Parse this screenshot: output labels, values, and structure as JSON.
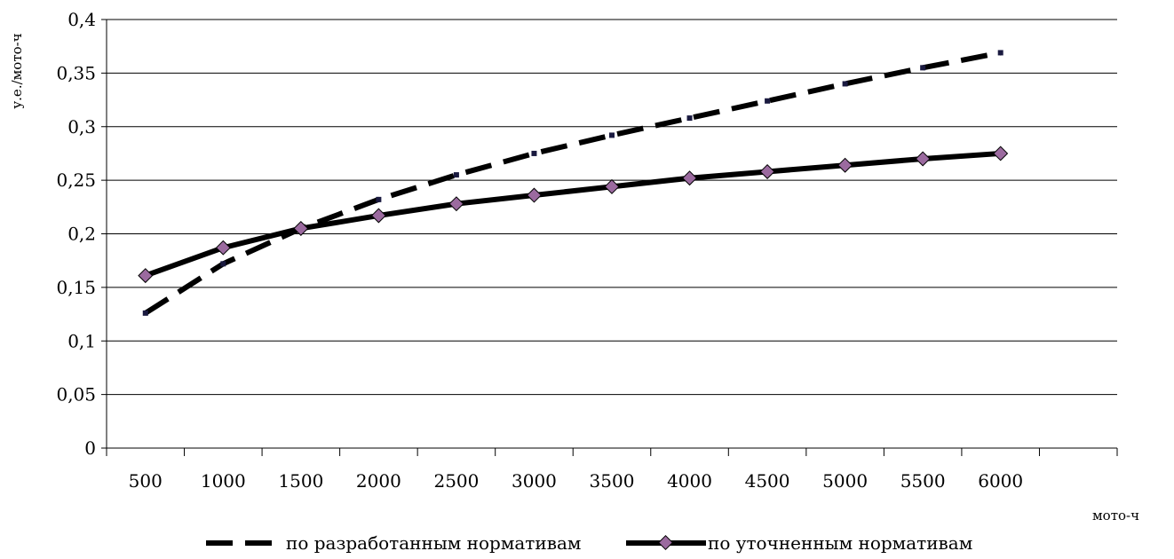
{
  "chart_data": {
    "type": "line",
    "categories": [
      "500",
      "1000",
      "1500",
      "2000",
      "2500",
      "3000",
      "3500",
      "4000",
      "4500",
      "5000",
      "5500",
      "6000"
    ],
    "ylabel": "у.е./мото-ч",
    "xlabel": "мото-ч",
    "ylim": [
      0,
      0.4
    ],
    "yticks": [
      "0",
      "0,05",
      "0,1",
      "0,15",
      "0,2",
      "0,25",
      "0,3",
      "0,35",
      "0,4"
    ],
    "grid": true,
    "legend_position": "bottom",
    "series": [
      {
        "name": "по разработанным нормативам",
        "style": "dashed",
        "values": [
          0.126,
          0.172,
          0.205,
          0.232,
          0.255,
          0.275,
          0.292,
          0.308,
          0.324,
          0.34,
          0.355,
          0.369
        ]
      },
      {
        "name": "по уточненным нормативам",
        "style": "solid-diamond",
        "values": [
          0.161,
          0.187,
          0.205,
          0.217,
          0.228,
          0.236,
          0.244,
          0.252,
          0.258,
          0.264,
          0.27,
          0.275
        ]
      }
    ],
    "colors": {
      "line": "#000000",
      "marker": "#9b6a9f",
      "grid": "#000000"
    }
  }
}
